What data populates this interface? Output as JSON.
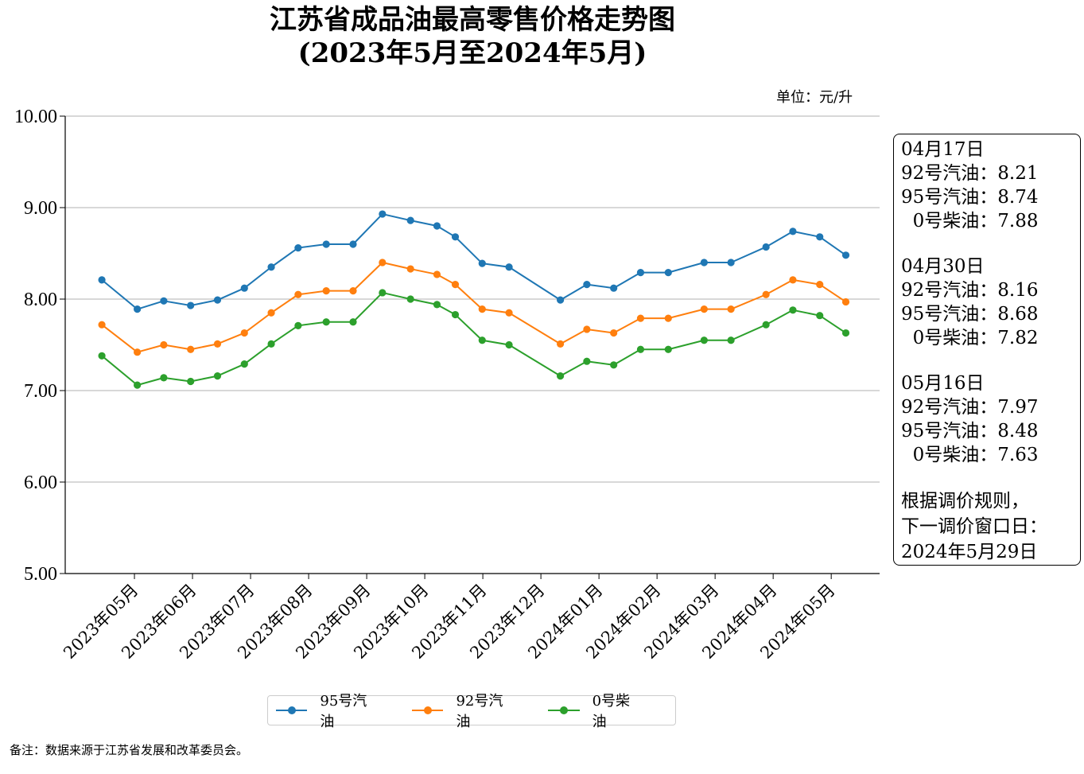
{
  "title_line1": "江苏省成品油最高零售价格走势图",
  "title_line2": "(2023年5月至2024年5月)",
  "unit": "单位：元/升",
  "note": "备注：数据来源于江苏省发展和改革委员会。",
  "colors": {
    "p95": "#1f77b4",
    "p92": "#ff7f0e",
    "p0": "#2ca02c",
    "grid": "#b0b0b0"
  },
  "info": {
    "blocks": [
      {
        "date": "04月17日",
        "rows": [
          "92号汽油：8.21",
          "95号汽油：8.74",
          "  0号柴油：7.88"
        ]
      },
      {
        "date": "04月30日",
        "rows": [
          "92号汽油：8.16",
          "95号汽油：8.68",
          "  0号柴油：7.82"
        ]
      },
      {
        "date": "05月16日",
        "rows": [
          "92号汽油：7.97",
          "95号汽油：8.48",
          "  0号柴油：7.63"
        ]
      }
    ],
    "rule_line1": "根据调价规则，",
    "rule_line2": "下一调价窗口日：",
    "rule_line3": "2024年5月29日"
  },
  "chart_data": {
    "type": "line",
    "title": "江苏省成品油最高零售价格走势图 (2023年5月至2024年5月)",
    "ylabel": "元/升",
    "ylim": [
      5.0,
      10.0
    ],
    "xlim": [
      0,
      100
    ],
    "yticks": [
      "5.00",
      "6.00",
      "7.00",
      "8.00",
      "9.00",
      "10.00"
    ],
    "xticks": [
      {
        "x": 8.5,
        "label": "2023年05月"
      },
      {
        "x": 15.63,
        "label": "2023年06月"
      },
      {
        "x": 22.76,
        "label": "2023年07月"
      },
      {
        "x": 29.89,
        "label": "2023年08月"
      },
      {
        "x": 37.02,
        "label": "2023年09月"
      },
      {
        "x": 44.15,
        "label": "2023年10月"
      },
      {
        "x": 51.28,
        "label": "2023年11月"
      },
      {
        "x": 58.41,
        "label": "2023年12月"
      },
      {
        "x": 65.54,
        "label": "2024年01月"
      },
      {
        "x": 72.67,
        "label": "2024年02月"
      },
      {
        "x": 79.8,
        "label": "2024年03月"
      },
      {
        "x": 86.93,
        "label": "2024年04月"
      },
      {
        "x": 94.06,
        "label": "2024年05月"
      }
    ],
    "x": [
      4.5,
      8.85,
      12.1,
      15.4,
      18.7,
      22.0,
      25.3,
      28.6,
      32.05,
      35.35,
      38.95,
      42.4,
      45.65,
      47.9,
      51.2,
      54.5,
      60.8,
      64.05,
      67.35,
      70.65,
      74.05,
      78.45,
      81.75,
      86.05,
      89.35,
      92.65,
      95.85
    ],
    "series": [
      {
        "name": "95号汽油",
        "color": "#1f77b4",
        "values": [
          8.21,
          7.89,
          7.98,
          7.93,
          7.99,
          8.12,
          8.35,
          8.56,
          8.6,
          8.6,
          8.93,
          8.86,
          8.8,
          8.68,
          8.39,
          8.35,
          7.99,
          8.16,
          8.12,
          8.29,
          8.29,
          8.4,
          8.4,
          8.57,
          8.74,
          8.68,
          8.48
        ]
      },
      {
        "name": "92号汽油",
        "color": "#ff7f0e",
        "values": [
          7.72,
          7.42,
          7.5,
          7.45,
          7.51,
          7.63,
          7.85,
          8.05,
          8.09,
          8.09,
          8.4,
          8.33,
          8.27,
          8.16,
          7.89,
          7.85,
          7.51,
          7.67,
          7.63,
          7.79,
          7.79,
          7.89,
          7.89,
          8.05,
          8.21,
          8.16,
          7.97
        ]
      },
      {
        "name": "0号柴油",
        "color": "#2ca02c",
        "values": [
          7.38,
          7.06,
          7.14,
          7.1,
          7.16,
          7.29,
          7.51,
          7.71,
          7.75,
          7.75,
          8.07,
          8.0,
          7.94,
          7.83,
          7.55,
          7.5,
          7.16,
          7.32,
          7.28,
          7.45,
          7.45,
          7.55,
          7.55,
          7.72,
          7.88,
          7.82,
          7.63
        ]
      }
    ],
    "grid": "horizontal",
    "legend": "bottom-center"
  }
}
